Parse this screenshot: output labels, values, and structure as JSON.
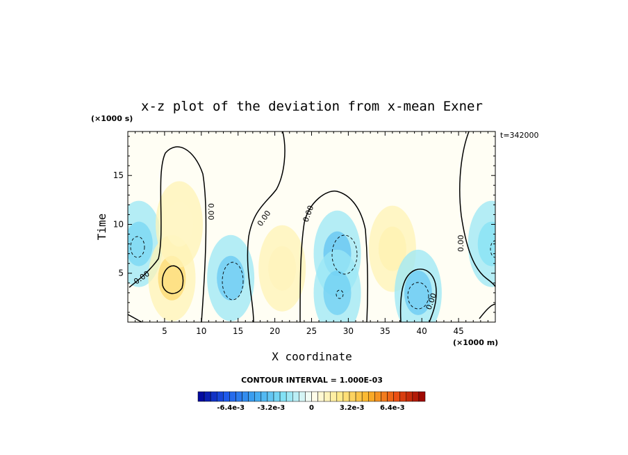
{
  "chart_data": {
    "type": "heatmap",
    "title": "x-z plot of the deviation from x-mean Exner",
    "xlabel": "X coordinate",
    "ylabel": "Time",
    "x_unit": "(×1000 m)",
    "y_unit": "(×1000 s)",
    "time_stamp": "t=342000",
    "contour_interval_text": "CONTOUR INTERVAL = 1.000E-03",
    "xlim": [
      0,
      50
    ],
    "ylim": [
      0,
      19.5
    ],
    "x_ticks": [
      5,
      10,
      15,
      20,
      25,
      30,
      35,
      40,
      45
    ],
    "y_ticks": [
      5,
      10,
      15
    ],
    "contour_label": "0.00",
    "colorbar": {
      "levels_min": -0.009,
      "levels_max": 0.009,
      "tick_labels": [
        "-6.4e-3",
        "-3.2e-3",
        "0",
        "3.2e-3",
        "6.4e-3"
      ],
      "tick_values": [
        -0.0064,
        -0.0032,
        0,
        0.0032,
        0.0064
      ]
    },
    "field_features": [
      {
        "sign": "negative",
        "x": 1.5,
        "y": 8.0,
        "value": -0.0011
      },
      {
        "sign": "positive",
        "x": 6.0,
        "y": 4.5,
        "value": 0.0012
      },
      {
        "sign": "positive",
        "x": 7.0,
        "y": 10.0,
        "value": 0.0004
      },
      {
        "sign": "negative",
        "x": 14.0,
        "y": 4.5,
        "value": -0.0013
      },
      {
        "sign": "positive",
        "x": 21.0,
        "y": 5.5,
        "value": 0.0005
      },
      {
        "sign": "negative",
        "x": 28.5,
        "y": 7.0,
        "value": -0.0014
      },
      {
        "sign": "negative",
        "x": 28.5,
        "y": 3.0,
        "value": -0.0012
      },
      {
        "sign": "positive",
        "x": 36.0,
        "y": 7.5,
        "value": 0.0006
      },
      {
        "sign": "negative",
        "x": 39.5,
        "y": 3.0,
        "value": -0.0013
      },
      {
        "sign": "negative",
        "x": 49.5,
        "y": 8.0,
        "value": -0.0009
      }
    ]
  }
}
